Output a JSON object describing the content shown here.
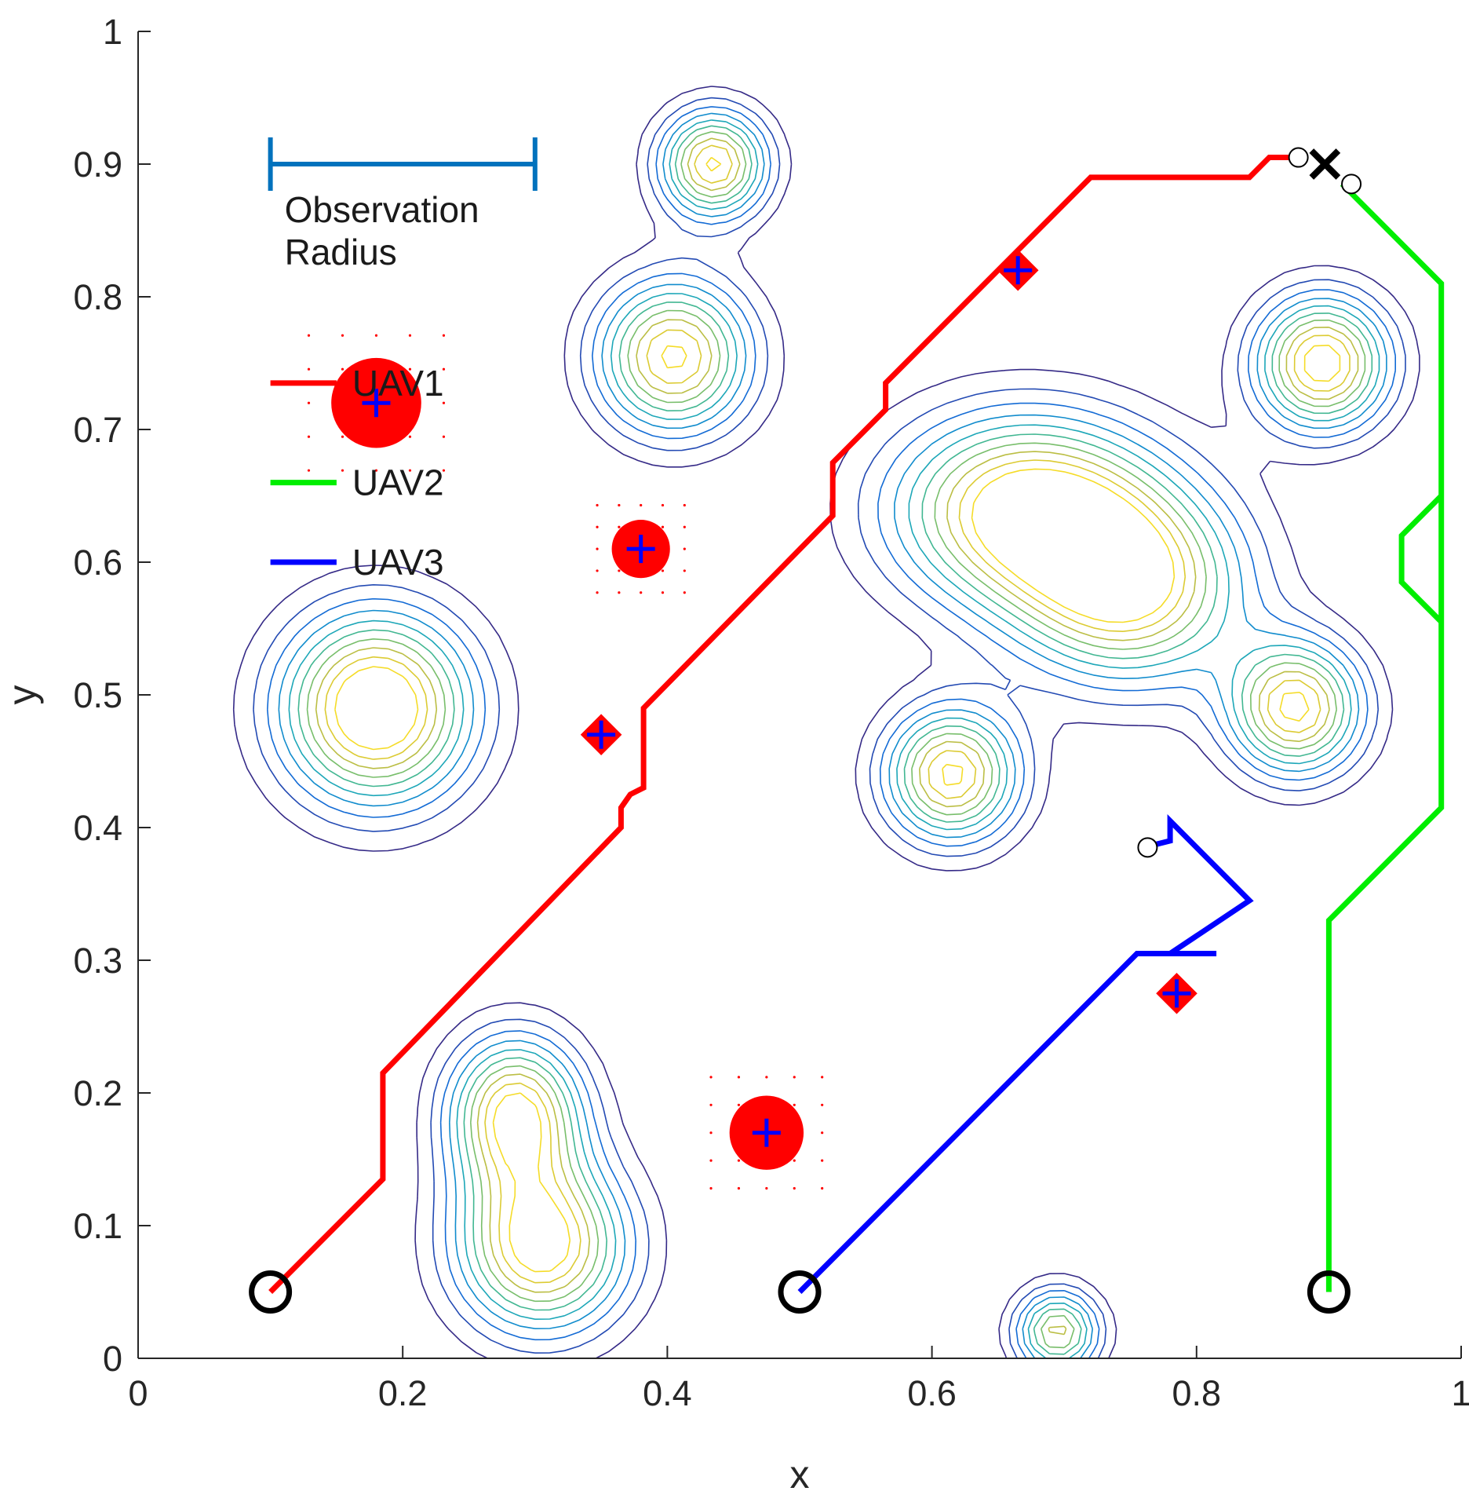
{
  "chart_data": {
    "type": "line",
    "title": "",
    "xlabel": "x",
    "ylabel": "y",
    "xlim": [
      0,
      1
    ],
    "ylim": [
      0,
      1
    ],
    "x_ticks": [
      0,
      0.2,
      0.4,
      0.6,
      0.8,
      1
    ],
    "x_tick_labels": [
      "0",
      "0.2",
      "0.4",
      "0.6",
      "0.8",
      "1"
    ],
    "y_ticks": [
      0,
      0.1,
      0.2,
      0.3,
      0.4,
      0.5,
      0.6,
      0.7,
      0.8,
      0.9,
      1
    ],
    "y_tick_labels": [
      "0",
      "0.1",
      "0.2",
      "0.3",
      "0.4",
      "0.5",
      "0.6",
      "0.7",
      "0.8",
      "0.9",
      "1"
    ],
    "grid": false,
    "legend_position": "top-left",
    "series": [
      {
        "name": "UAV1",
        "color": "#ff0000",
        "points": [
          [
            0.1,
            0.05
          ],
          [
            0.185,
            0.135
          ],
          [
            0.185,
            0.215
          ],
          [
            0.365,
            0.4
          ],
          [
            0.365,
            0.415
          ],
          [
            0.372,
            0.425
          ],
          [
            0.382,
            0.43
          ],
          [
            0.382,
            0.49
          ],
          [
            0.525,
            0.635
          ],
          [
            0.525,
            0.675
          ],
          [
            0.565,
            0.715
          ],
          [
            0.565,
            0.735
          ],
          [
            0.72,
            0.89
          ],
          [
            0.84,
            0.89
          ],
          [
            0.855,
            0.905
          ],
          [
            0.875,
            0.905
          ]
        ]
      },
      {
        "name": "UAV2",
        "color": "#00ee00",
        "points": [
          [
            0.9,
            0.05
          ],
          [
            0.9,
            0.33
          ],
          [
            0.985,
            0.415
          ],
          [
            0.985,
            0.65
          ],
          [
            0.955,
            0.62
          ],
          [
            0.955,
            0.585
          ],
          [
            0.985,
            0.555
          ],
          [
            0.985,
            0.81
          ],
          [
            0.91,
            0.885
          ]
        ]
      },
      {
        "name": "UAV3",
        "color": "#0000ff",
        "points": [
          [
            0.5,
            0.05
          ],
          [
            0.755,
            0.305
          ],
          [
            0.815,
            0.305
          ],
          [
            0.78,
            0.305
          ],
          [
            0.84,
            0.345
          ],
          [
            0.78,
            0.405
          ],
          [
            0.78,
            0.39
          ],
          [
            0.76,
            0.385
          ]
        ]
      }
    ],
    "start_markers": [
      [
        0.1,
        0.05
      ],
      [
        0.5,
        0.05
      ],
      [
        0.9,
        0.05
      ]
    ],
    "end_markers": [
      [
        0.877,
        0.905
      ],
      [
        0.917,
        0.885
      ],
      [
        0.763,
        0.385
      ]
    ],
    "goal_marker": [
      0.897,
      0.9
    ],
    "targets": [
      {
        "x": 0.18,
        "y": 0.72,
        "radius": 0.034
      },
      {
        "x": 0.38,
        "y": 0.61,
        "radius": 0.022
      },
      {
        "x": 0.475,
        "y": 0.17,
        "radius": 0.028
      },
      {
        "x": 0.665,
        "y": 0.82,
        "radius": 0.012
      },
      {
        "x": 0.35,
        "y": 0.47,
        "radius": 0.012
      },
      {
        "x": 0.785,
        "y": 0.275,
        "radius": 0.012
      }
    ],
    "contour_peaks": [
      {
        "x": 0.18,
        "y": 0.49,
        "sx": 0.05,
        "sy": 0.05,
        "a": 1.0
      },
      {
        "x": 0.285,
        "y": 0.185,
        "sx": 0.035,
        "sy": 0.04,
        "a": 0.85
      },
      {
        "x": 0.305,
        "y": 0.085,
        "sx": 0.045,
        "sy": 0.045,
        "a": 0.9
      },
      {
        "x": 0.405,
        "y": 0.755,
        "sx": 0.04,
        "sy": 0.04,
        "a": 0.85
      },
      {
        "x": 0.435,
        "y": 0.9,
        "sx": 0.028,
        "sy": 0.028,
        "a": 0.85
      },
      {
        "x": 0.67,
        "y": 0.64,
        "sx": 0.07,
        "sy": 0.05,
        "a": 0.9
      },
      {
        "x": 0.75,
        "y": 0.58,
        "sx": 0.06,
        "sy": 0.05,
        "a": 0.8
      },
      {
        "x": 0.615,
        "y": 0.44,
        "sx": 0.035,
        "sy": 0.035,
        "a": 0.85
      },
      {
        "x": 0.875,
        "y": 0.49,
        "sx": 0.035,
        "sy": 0.035,
        "a": 0.85
      },
      {
        "x": 0.895,
        "y": 0.75,
        "sx": 0.035,
        "sy": 0.035,
        "a": 0.9
      },
      {
        "x": 0.695,
        "y": 0.02,
        "sx": 0.022,
        "sy": 0.022,
        "a": 0.7
      }
    ],
    "contour_levels": [
      0.1,
      0.18,
      0.26,
      0.34,
      0.42,
      0.5,
      0.58,
      0.66,
      0.74,
      0.82
    ],
    "legend": [
      "UAV1",
      "UAV2",
      "UAV3"
    ],
    "annotation": {
      "text_line1": "Observation",
      "text_line2": "Radius",
      "color": "#0072bd",
      "x_start": 0.1,
      "x_end": 0.3,
      "y": 0.9
    }
  }
}
